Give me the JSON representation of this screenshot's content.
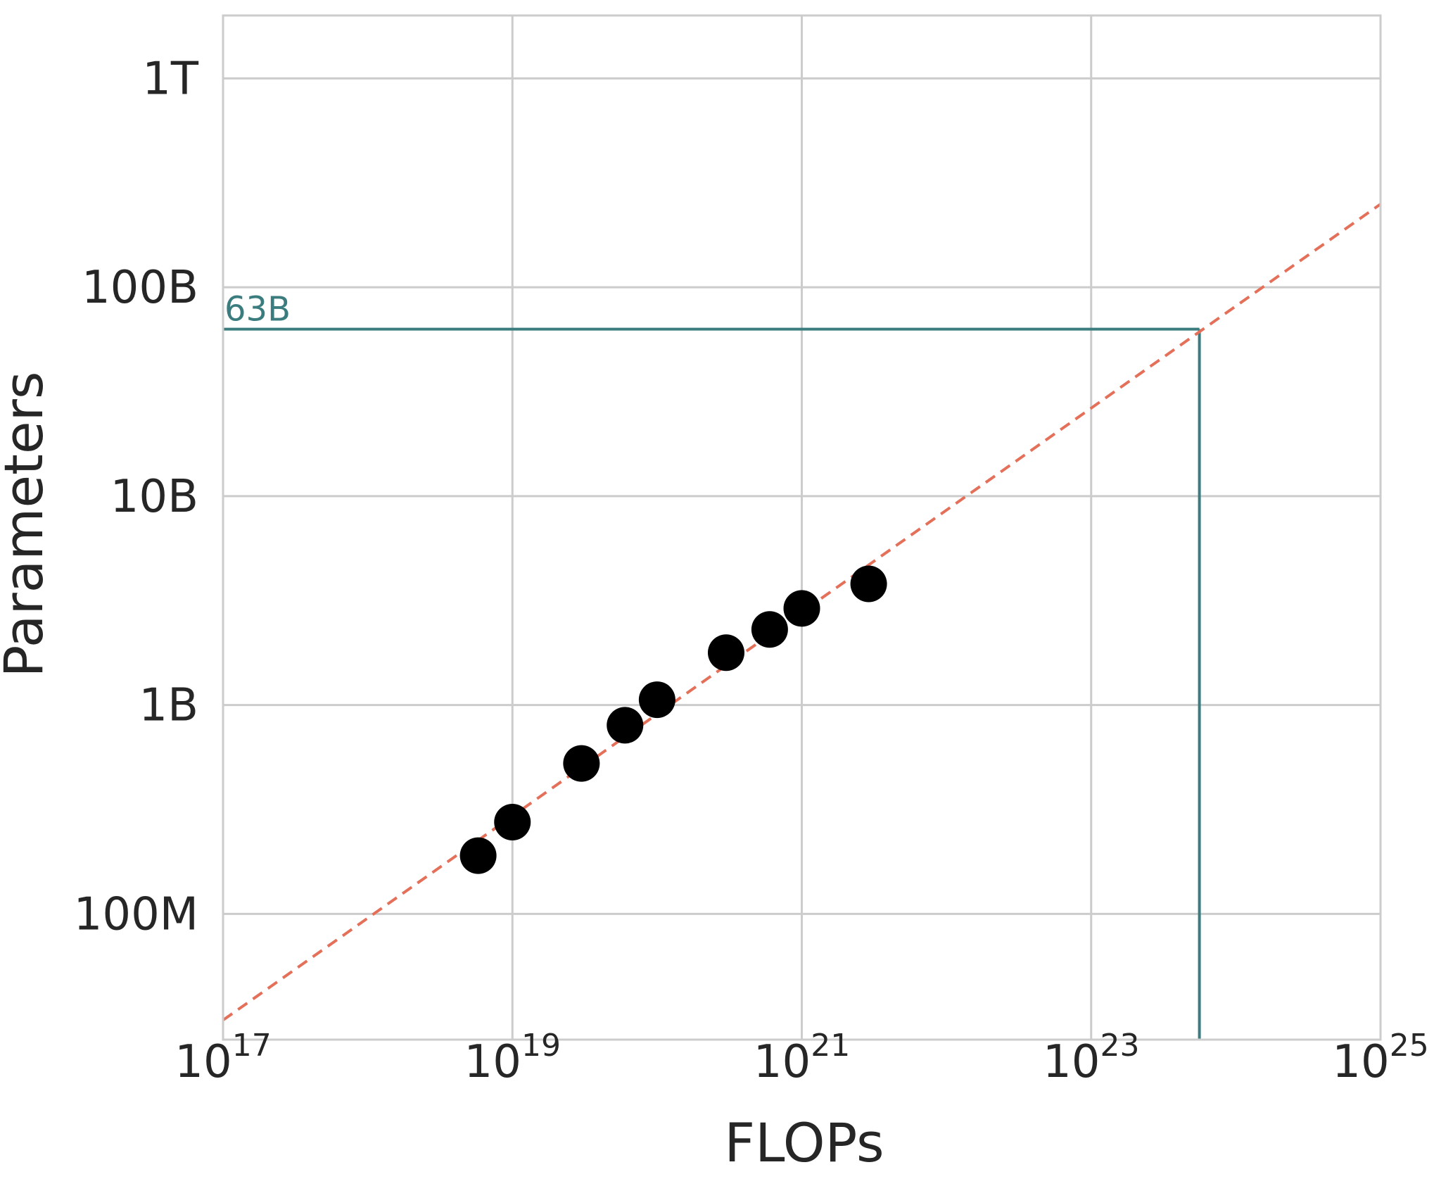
{
  "chart_data": {
    "type": "scatter",
    "xlabel": "FLOPs",
    "ylabel": "Parameters",
    "x_scale": "log",
    "y_scale": "log",
    "xlim": [
      1e+17,
      1e+25
    ],
    "ylim": [
      25000000.0,
      2000000000000.0
    ],
    "grid": true,
    "x_ticks": [
      {
        "value": 1e+17,
        "base": "10",
        "exp": "17"
      },
      {
        "value": 1e+19,
        "base": "10",
        "exp": "19"
      },
      {
        "value": 1e+21,
        "base": "10",
        "exp": "21"
      },
      {
        "value": 1e+23,
        "base": "10",
        "exp": "23"
      },
      {
        "value": 1e+25,
        "base": "10",
        "exp": "25"
      }
    ],
    "y_ticks": [
      {
        "value": 100000000.0,
        "label": "100M"
      },
      {
        "value": 1000000000.0,
        "label": "1B"
      },
      {
        "value": 10000000000.0,
        "label": "10B"
      },
      {
        "value": 100000000000.0,
        "label": "100B"
      },
      {
        "value": 1000000000000.0,
        "label": "1T"
      }
    ],
    "points": {
      "color": "#000000",
      "x": [
        5.8e+18,
        1e+19,
        3e+19,
        6e+19,
        1e+20,
        3e+20,
        6e+20,
        1e+21,
        2.9e+21
      ],
      "y": [
        190000000.0,
        275000000.0,
        525000000.0,
        800000000.0,
        1060000000.0,
        1780000000.0,
        2300000000.0,
        2900000000.0,
        3800000000.0
      ]
    },
    "fit_line": {
      "style": "dashed",
      "color": "#E4705A",
      "x": [
        1e+17,
        1e+25
      ],
      "y": [
        31000000.0,
        250000000000.0
      ]
    },
    "projection": {
      "color": "#3B7D7F",
      "x": 5.6e+23,
      "y": 63000000000.0,
      "label": "63B"
    }
  }
}
